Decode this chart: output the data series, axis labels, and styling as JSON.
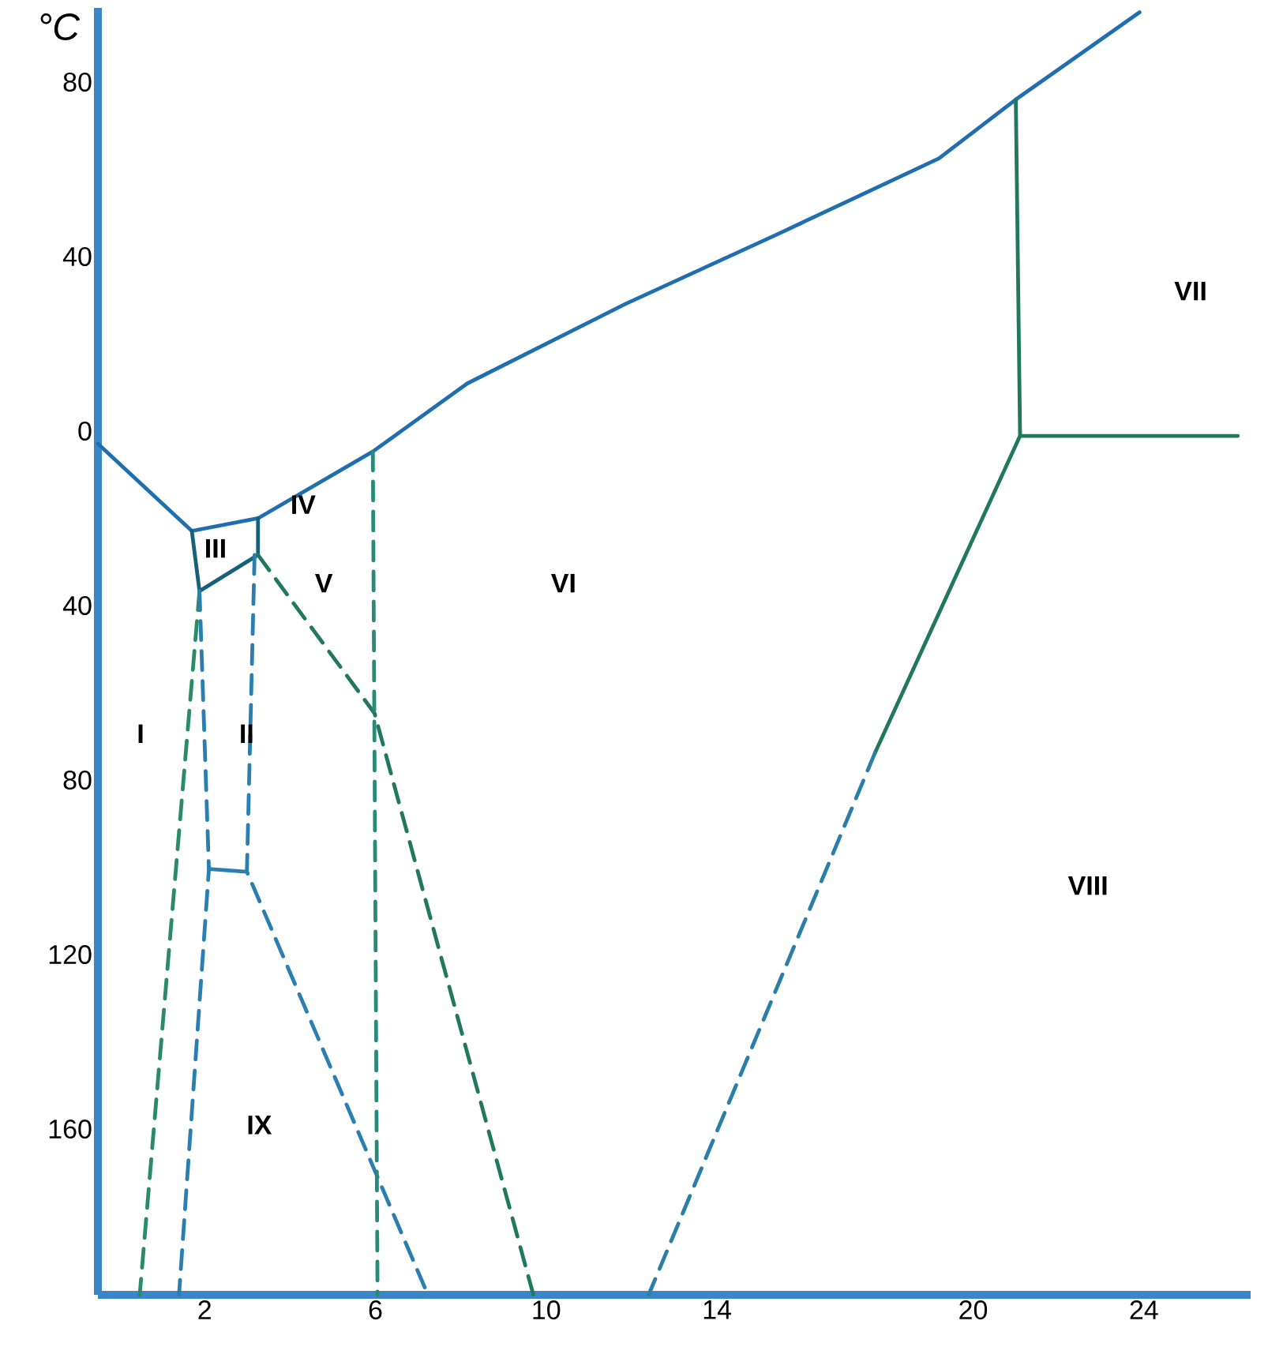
{
  "chart_data": {
    "type": "line",
    "ylabel": "°C",
    "xlim": [
      -0.5,
      26.5
    ],
    "ylim": [
      -198,
      97
    ],
    "xticks": [
      2,
      6,
      10,
      14,
      20,
      24
    ],
    "yticks": [
      80,
      40,
      0,
      {
        "value": -40,
        "label": "40"
      },
      {
        "value": -80,
        "label": "80"
      },
      {
        "value": -120,
        "label": "120"
      },
      {
        "value": -160,
        "label": "160"
      }
    ],
    "grid": false,
    "marker": "none",
    "series": [
      {
        "color": "#1f6fb0",
        "line_style": "solid",
        "x": [
          -0.5,
          1.7,
          3.25,
          5.94,
          8.15,
          11.85,
          15.5,
          19.2,
          21.0,
          23.9
        ],
        "values": [
          -2.9,
          -22.9,
          -20,
          -4.7,
          10.9,
          29.1,
          45.5,
          62.5,
          76,
          96
        ]
      },
      {
        "color": "#17607a",
        "line_style": "solid",
        "x": [
          1.7,
          1.88,
          3.25,
          3.25
        ],
        "values": [
          -22.9,
          -36.7,
          -28.4,
          -20
        ]
      },
      {
        "color": "#22785e",
        "line_style": "solid",
        "x": [
          21.0,
          21.1,
          17.7
        ],
        "values": [
          76,
          -1.1,
          -73.8
        ]
      },
      {
        "color": "#22785e",
        "line_style": "solid",
        "x": [
          21.1,
          26.2
        ],
        "values": [
          -1.1,
          -1.1
        ]
      },
      {
        "color": "#2a7fa8",
        "line_style": "dashed",
        "x": [
          17.7,
          12.4
        ],
        "values": [
          -73.8,
          -198
        ]
      },
      {
        "color": "#2a8a6a",
        "line_style": "dashed",
        "x": [
          1.88,
          0.48
        ],
        "values": [
          -36.7,
          -198
        ]
      },
      {
        "color": "#2a7fb0",
        "line_style": "dashed",
        "x": [
          1.88,
          2.1,
          1.4
        ],
        "values": [
          -36.7,
          -100.4,
          -198
        ]
      },
      {
        "color": "#2a7fb0",
        "line_style": "dashed",
        "x": [
          3.17,
          2.99,
          7.23
        ],
        "values": [
          -28.4,
          -101,
          -198
        ]
      },
      {
        "color": "#2a7fb0",
        "line_style": "solid",
        "x": [
          2.1,
          2.99
        ],
        "values": [
          -100.4,
          -101
        ]
      },
      {
        "color": "#22785e",
        "line_style": "dashed",
        "x": [
          3.25,
          5.98,
          9.7
        ],
        "values": [
          -28.4,
          -64.7,
          -198
        ]
      },
      {
        "color": "#2a8a7a",
        "line_style": "dashed",
        "x": [
          5.94,
          6.05
        ],
        "values": [
          -4.7,
          -198
        ]
      }
    ],
    "annotations": [
      "I",
      "II",
      "III",
      "IV",
      "V",
      "VI",
      "VII",
      "VIII",
      "IX"
    ]
  }
}
